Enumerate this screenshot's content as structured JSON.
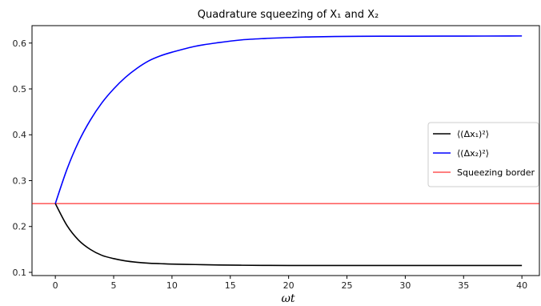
{
  "chart_data": {
    "type": "line",
    "title": "Quadrature squeezing of X₁ and X₂",
    "xlabel": "ωt",
    "ylabel": "",
    "xlim": [
      -2,
      41.5
    ],
    "ylim": [
      0.093,
      0.638
    ],
    "xticks": [
      0,
      5,
      10,
      15,
      20,
      25,
      30,
      35,
      40
    ],
    "yticks": [
      0.1,
      0.2,
      0.3,
      0.4,
      0.5,
      0.6
    ],
    "grid": false,
    "legend_position": "center-right",
    "x": [
      0,
      1,
      2,
      3,
      4,
      5,
      6,
      7,
      8,
      9,
      10,
      12,
      14,
      16,
      18,
      20,
      22,
      25,
      28,
      30,
      35,
      40
    ],
    "series": [
      {
        "name": "⟨(Δx₁)²⟩",
        "color": "#000000",
        "values": [
          0.25,
          0.202,
          0.17,
          0.15,
          0.137,
          0.13,
          0.125,
          0.122,
          0.12,
          0.119,
          0.118,
          0.117,
          0.116,
          0.1155,
          0.1152,
          0.115,
          0.115,
          0.115,
          0.115,
          0.115,
          0.115,
          0.115
        ]
      },
      {
        "name": "⟨(Δx₂)²⟩",
        "color": "#0000ff",
        "values": [
          0.25,
          0.325,
          0.385,
          0.432,
          0.47,
          0.5,
          0.525,
          0.545,
          0.561,
          0.572,
          0.58,
          0.593,
          0.601,
          0.607,
          0.61,
          0.612,
          0.6135,
          0.6145,
          0.615,
          0.615,
          0.6152,
          0.6155
        ]
      }
    ],
    "hlines": [
      {
        "name": "Squeezing border",
        "y": 0.25,
        "color": "#ff0000"
      }
    ]
  }
}
